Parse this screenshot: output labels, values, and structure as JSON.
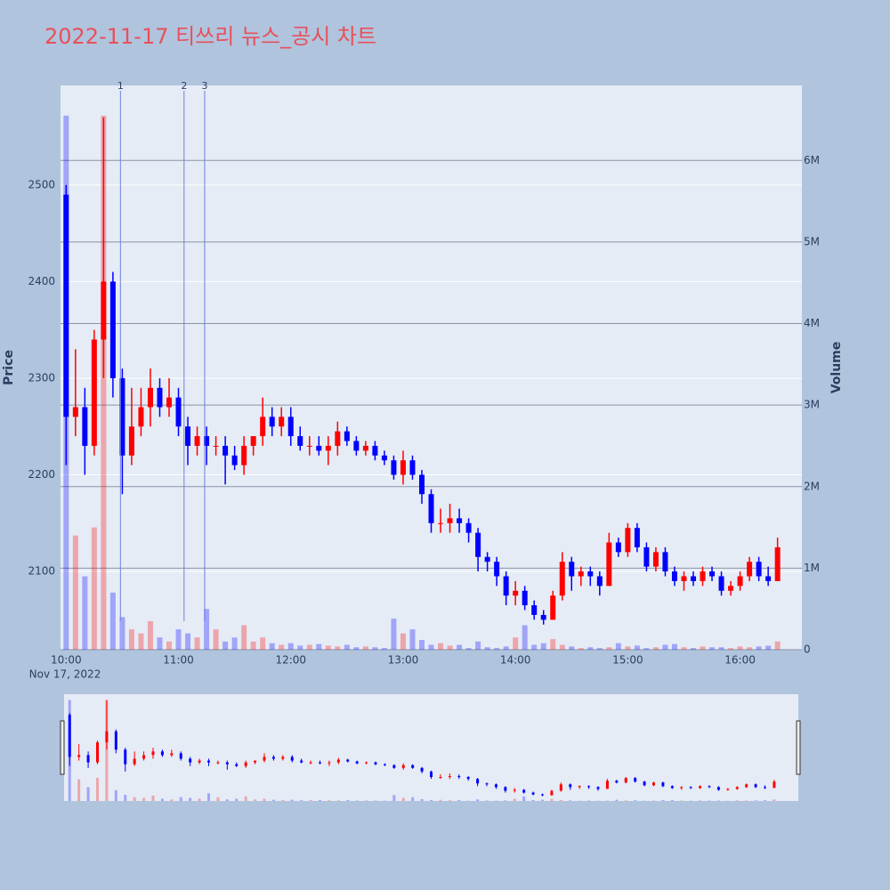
{
  "chart_data": {
    "type": "candlestick",
    "title": "2022-11-17 티쓰리 뉴스_공시 차트",
    "date_label": "Nov 17, 2022",
    "yaxis_title": "Price",
    "y2axis_title": "Volume",
    "x": [
      "10:00",
      "10:05",
      "10:10",
      "10:15",
      "10:20",
      "10:25",
      "10:30",
      "10:35",
      "10:40",
      "10:45",
      "10:50",
      "10:55",
      "11:00",
      "11:05",
      "11:10",
      "11:15",
      "11:20",
      "11:25",
      "11:30",
      "11:35",
      "11:40",
      "11:45",
      "11:50",
      "11:55",
      "12:00",
      "12:05",
      "12:10",
      "12:15",
      "12:20",
      "12:25",
      "12:30",
      "12:35",
      "12:40",
      "12:45",
      "12:50",
      "12:55",
      "13:00",
      "13:05",
      "13:10",
      "13:15",
      "13:20",
      "13:25",
      "13:30",
      "13:35",
      "13:40",
      "13:45",
      "13:50",
      "13:55",
      "14:00",
      "14:05",
      "14:10",
      "14:15",
      "14:20",
      "14:25",
      "14:30",
      "14:35",
      "14:40",
      "14:45",
      "14:50",
      "14:55",
      "15:00",
      "15:05",
      "15:10",
      "15:15",
      "15:20",
      "15:25",
      "15:30",
      "15:35",
      "15:40",
      "15:45",
      "15:50",
      "15:55",
      "16:00",
      "16:05",
      "16:10",
      "16:15",
      "16:20"
    ],
    "open": [
      2490,
      2260,
      2270,
      2230,
      2340,
      2400,
      2300,
      2220,
      2250,
      2270,
      2290,
      2270,
      2280,
      2250,
      2230,
      2240,
      2230,
      2230,
      2220,
      2210,
      2230,
      2240,
      2260,
      2250,
      2260,
      2240,
      2230,
      2230,
      2225,
      2230,
      2245,
      2235,
      2225,
      2230,
      2220,
      2215,
      2200,
      2215,
      2200,
      2180,
      2150,
      2150,
      2155,
      2150,
      2140,
      2115,
      2110,
      2095,
      2075,
      2080,
      2065,
      2055,
      2050,
      2075,
      2110,
      2095,
      2100,
      2095,
      2085,
      2130,
      2120,
      2145,
      2125,
      2105,
      2120,
      2100,
      2090,
      2095,
      2090,
      2100,
      2095,
      2080,
      2085,
      2095,
      2110,
      2095,
      2090
    ],
    "high": [
      2500,
      2330,
      2290,
      2350,
      2570,
      2410,
      2310,
      2290,
      2290,
      2310,
      2300,
      2300,
      2290,
      2260,
      2250,
      2250,
      2240,
      2240,
      2230,
      2240,
      2240,
      2280,
      2270,
      2270,
      2270,
      2250,
      2240,
      2240,
      2240,
      2255,
      2250,
      2240,
      2235,
      2235,
      2225,
      2220,
      2225,
      2220,
      2205,
      2185,
      2165,
      2170,
      2165,
      2155,
      2145,
      2120,
      2115,
      2100,
      2090,
      2085,
      2070,
      2060,
      2080,
      2120,
      2115,
      2105,
      2105,
      2100,
      2140,
      2135,
      2150,
      2150,
      2130,
      2125,
      2125,
      2105,
      2100,
      2100,
      2105,
      2105,
      2100,
      2090,
      2100,
      2115,
      2115,
      2105,
      2135
    ],
    "low": [
      2210,
      2240,
      2200,
      2220,
      2300,
      2280,
      2180,
      2210,
      2240,
      2250,
      2260,
      2260,
      2240,
      2210,
      2220,
      2210,
      2220,
      2190,
      2205,
      2200,
      2220,
      2230,
      2240,
      2240,
      2230,
      2225,
      2220,
      2220,
      2210,
      2220,
      2230,
      2220,
      2220,
      2215,
      2210,
      2195,
      2190,
      2195,
      2170,
      2140,
      2140,
      2140,
      2140,
      2130,
      2100,
      2100,
      2085,
      2065,
      2065,
      2060,
      2050,
      2045,
      2050,
      2070,
      2080,
      2085,
      2085,
      2075,
      2085,
      2115,
      2115,
      2120,
      2100,
      2100,
      2095,
      2085,
      2080,
      2085,
      2085,
      2090,
      2075,
      2075,
      2080,
      2090,
      2090,
      2085,
      2090
    ],
    "close": [
      2260,
      2270,
      2230,
      2340,
      2400,
      2300,
      2220,
      2250,
      2270,
      2290,
      2270,
      2280,
      2250,
      2230,
      2240,
      2230,
      2230,
      2220,
      2210,
      2230,
      2240,
      2260,
      2250,
      2260,
      2240,
      2230,
      2230,
      2225,
      2230,
      2245,
      2235,
      2225,
      2230,
      2220,
      2215,
      2200,
      2215,
      2200,
      2180,
      2150,
      2150,
      2155,
      2150,
      2140,
      2115,
      2110,
      2095,
      2075,
      2080,
      2065,
      2055,
      2050,
      2075,
      2110,
      2095,
      2100,
      2095,
      2085,
      2130,
      2120,
      2145,
      2125,
      2105,
      2120,
      2100,
      2090,
      2095,
      2090,
      2100,
      2095,
      2080,
      2085,
      2095,
      2110,
      2095,
      2090,
      2125
    ],
    "volume": [
      6550000,
      1400000,
      900000,
      1500000,
      6550000,
      700000,
      400000,
      250000,
      200000,
      350000,
      150000,
      100000,
      250000,
      200000,
      150000,
      500000,
      250000,
      100000,
      150000,
      300000,
      100000,
      150000,
      80000,
      60000,
      80000,
      50000,
      60000,
      70000,
      50000,
      40000,
      60000,
      30000,
      40000,
      30000,
      20000,
      380000,
      200000,
      250000,
      120000,
      60000,
      80000,
      50000,
      60000,
      20000,
      100000,
      30000,
      20000,
      40000,
      150000,
      300000,
      60000,
      80000,
      130000,
      60000,
      40000,
      20000,
      30000,
      20000,
      30000,
      80000,
      40000,
      50000,
      20000,
      30000,
      60000,
      70000,
      30000,
      20000,
      40000,
      30000,
      30000,
      20000,
      40000,
      30000,
      40000,
      50000,
      100000
    ],
    "increasing_color": "#ff0000",
    "decreasing_color": "#0000ff",
    "xlim": [
      "09:57",
      "16:33"
    ],
    "xticks": [
      "10:00",
      "11:00",
      "12:00",
      "13:00",
      "14:00",
      "15:00",
      "16:00"
    ],
    "ylim": [
      2019,
      2603
    ],
    "yticks": [
      2100,
      2200,
      2300,
      2400,
      2500
    ],
    "y2lim": [
      0,
      6920000
    ],
    "y2ticks": [
      0,
      {
        "value": 1000000,
        "label": "1M"
      },
      {
        "value": 2000000,
        "label": "2M"
      },
      {
        "value": 3000000,
        "label": "3M"
      },
      {
        "value": 4000000,
        "label": "4M"
      },
      {
        "value": 5000000,
        "label": "5M"
      },
      {
        "value": 6000000,
        "label": "6M"
      }
    ],
    "markers": [
      {
        "x": "10:29",
        "label": "1"
      },
      {
        "x": "11:03",
        "label": "2"
      },
      {
        "x": "11:14",
        "label": "3"
      }
    ],
    "grid": true,
    "rangeslider": true
  }
}
